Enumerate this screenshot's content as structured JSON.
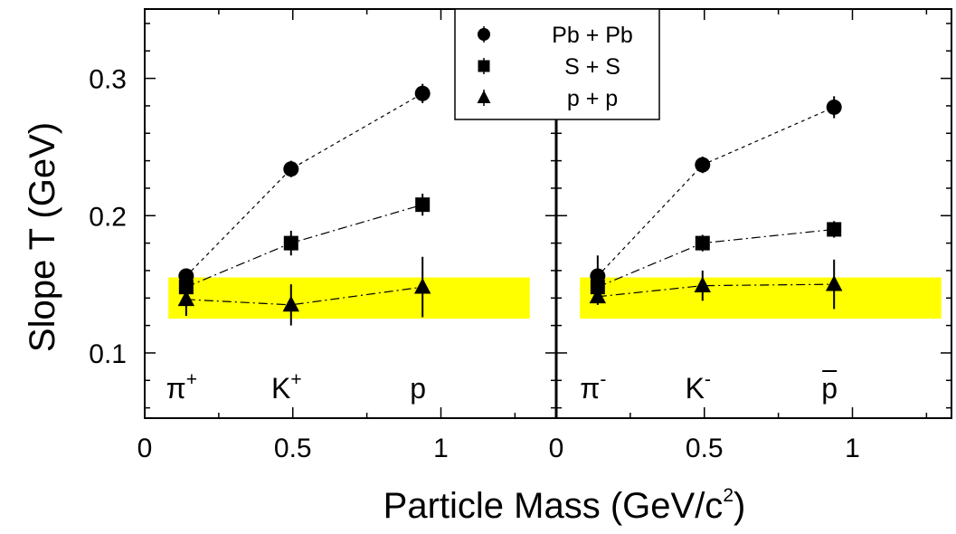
{
  "chart_data": {
    "type": "scatter",
    "ylabel": "Slope T (GeV)",
    "xlabel_main": "Particle Mass (GeV/c",
    "xlabel_sup": "2",
    "xlabel_close": ")",
    "ylim": [
      0.0525,
      0.3505
    ],
    "y_ticks": [
      "0.1",
      "0.2",
      "0.3"
    ],
    "y_tick_values": [
      0.1,
      0.2,
      0.3
    ],
    "grid": false,
    "legend_position": "top-center",
    "band": {
      "ymin": 0.125,
      "ymax": 0.155,
      "color": "#ffff00"
    },
    "marker_color": "#000000",
    "panels": [
      {
        "xlim": [
          0,
          1.4
        ],
        "x_ticks": [
          "0",
          "0.5",
          "1"
        ],
        "x_tick_values": [
          0,
          0.5,
          1
        ],
        "band_x": [
          0.08,
          1.3
        ],
        "particles": [
          {
            "name": "π",
            "charge": "+",
            "mass": 0.14
          },
          {
            "name": "K",
            "charge": "+",
            "mass": 0.494
          },
          {
            "name": "p",
            "charge": "",
            "mass": 0.938
          }
        ],
        "series": [
          {
            "name": "Pb + Pb",
            "marker": "circle",
            "x": [
              0.14,
              0.494,
              0.938
            ],
            "y": [
              0.156,
              0.234,
              0.289
            ],
            "err": [
              0.004,
              0.006,
              0.007
            ]
          },
          {
            "name": "S + S",
            "marker": "square",
            "x": [
              0.14,
              0.494,
              0.938
            ],
            "y": [
              0.148,
              0.18,
              0.208
            ],
            "err": [
              0.004,
              0.009,
              0.008
            ]
          },
          {
            "name": "p + p",
            "marker": "triangle",
            "x": [
              0.14,
              0.494,
              0.938
            ],
            "y": [
              0.139,
              0.135,
              0.148
            ],
            "err": [
              0.012,
              0.015,
              0.022
            ]
          }
        ]
      },
      {
        "xlim": [
          0,
          1.4
        ],
        "x_ticks": [
          "0",
          "0.5",
          "1"
        ],
        "x_tick_values": [
          0,
          0.5,
          1
        ],
        "band_x": [
          0.08,
          1.3
        ],
        "particles": [
          {
            "name": "π",
            "charge": "-",
            "mass": 0.14
          },
          {
            "name": "K",
            "charge": "-",
            "mass": 0.494
          },
          {
            "name": "p",
            "charge": "",
            "mass": 0.938,
            "bar": true
          }
        ],
        "series": [
          {
            "name": "Pb + Pb",
            "marker": "circle",
            "x": [
              0.14,
              0.494,
              0.938
            ],
            "y": [
              0.156,
              0.237,
              0.279
            ],
            "err": [
              0.015,
              0.006,
              0.008
            ]
          },
          {
            "name": "S + S",
            "marker": "square",
            "x": [
              0.14,
              0.494,
              0.938
            ],
            "y": [
              0.148,
              0.18,
              0.19
            ],
            "err": [
              0.005,
              0.006,
              0.006
            ]
          },
          {
            "name": "p + p",
            "marker": "triangle",
            "x": [
              0.14,
              0.494,
              0.938
            ],
            "y": [
              0.141,
              0.149,
              0.15
            ],
            "err": [
              0.006,
              0.011,
              0.018
            ]
          }
        ]
      }
    ],
    "legend": [
      {
        "label": "Pb + Pb",
        "marker": "circle"
      },
      {
        "label": "S + S",
        "marker": "square"
      },
      {
        "label": "p + p",
        "marker": "triangle"
      }
    ]
  }
}
